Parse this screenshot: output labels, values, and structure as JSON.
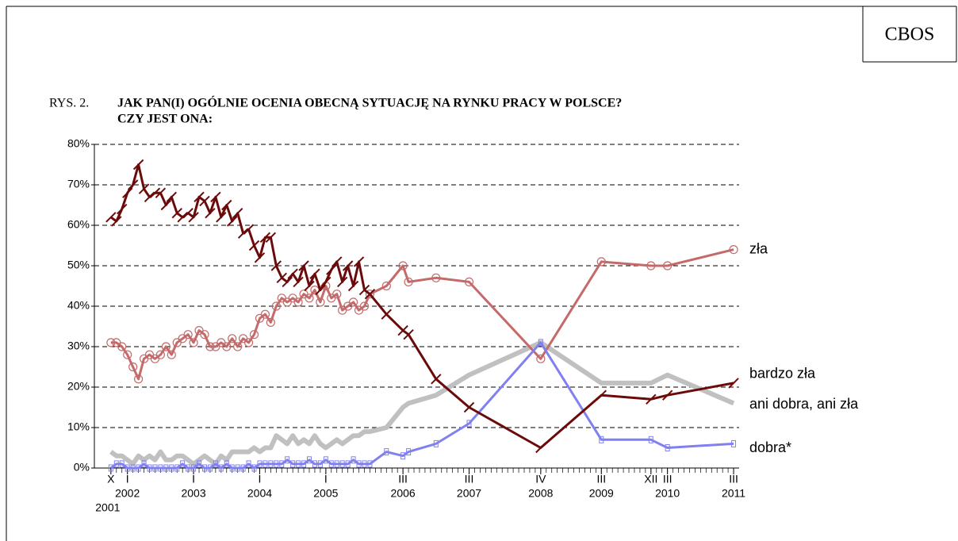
{
  "header": {
    "logo": "CBOS",
    "figure_label": "RYS. 2."
  },
  "chart_data": {
    "type": "line",
    "title": "JAK PAN(I) OGÓLNIE OCENIA OBECNĄ SYTUACJĘ NA RYNKU PRACY W POLSCE?",
    "subtitle": "CZY JEST ONA:",
    "x": [
      "2001-10",
      "2001-11",
      "2001-12",
      "2002-01",
      "2002-02",
      "2002-03",
      "2002-04",
      "2002-05",
      "2002-06",
      "2002-07",
      "2002-08",
      "2002-09",
      "2002-10",
      "2002-11",
      "2002-12",
      "2003-01",
      "2003-02",
      "2003-03",
      "2003-04",
      "2003-05",
      "2003-06",
      "2003-07",
      "2003-08",
      "2003-09",
      "2003-10",
      "2003-11",
      "2003-12",
      "2004-01",
      "2004-02",
      "2004-03",
      "2004-04",
      "2004-05",
      "2004-06",
      "2004-07",
      "2004-08",
      "2004-09",
      "2004-10",
      "2004-11",
      "2004-12",
      "2005-01",
      "2005-02",
      "2005-03",
      "2005-04",
      "2005-05",
      "2005-06",
      "2005-07",
      "2005-08",
      "2005-09",
      "2005-12",
      "2006-03",
      "2006-04",
      "2006-09",
      "2007-03",
      "2008-04",
      "2009-03",
      "2009-12",
      "2010-03",
      "2011-03"
    ],
    "series": [
      {
        "name": "zła",
        "color": "#c46a6a",
        "values": [
          31,
          31,
          30,
          28,
          25,
          22,
          27,
          28,
          27,
          28,
          30,
          28,
          31,
          32,
          33,
          31,
          34,
          33,
          30,
          30,
          31,
          30,
          32,
          30,
          32,
          31,
          33,
          37,
          38,
          36,
          40,
          42,
          41,
          42,
          41,
          43,
          42,
          44,
          41,
          45,
          42,
          43,
          39,
          40,
          41,
          39,
          40,
          43,
          45,
          50,
          46,
          47,
          46,
          27,
          51,
          50,
          50,
          54
        ]
      },
      {
        "name": "bardzo zła",
        "color": "#6b0a0a",
        "values": [
          62,
          61,
          64,
          68,
          70,
          75,
          69,
          67,
          68,
          68,
          65,
          67,
          63,
          62,
          63,
          62,
          67,
          66,
          63,
          67,
          62,
          65,
          61,
          63,
          58,
          59,
          55,
          52,
          57,
          57,
          50,
          47,
          46,
          48,
          46,
          50,
          45,
          48,
          44,
          46,
          49,
          51,
          46,
          50,
          45,
          51,
          44,
          43,
          38,
          34,
          33,
          22,
          15,
          5,
          18,
          17,
          18,
          21
        ]
      },
      {
        "name": "ani dobra, ani zła",
        "color": "#c0c0c0",
        "values": [
          4,
          3,
          3,
          2,
          1,
          3,
          2,
          3,
          2,
          4,
          2,
          2,
          3,
          3,
          2,
          1,
          2,
          3,
          2,
          1,
          3,
          2,
          4,
          4,
          4,
          4,
          5,
          4,
          5,
          5,
          8,
          7,
          6,
          8,
          6,
          7,
          6,
          8,
          6,
          5,
          6,
          7,
          6,
          7,
          8,
          8,
          9,
          9,
          10,
          15,
          16,
          18,
          23,
          31,
          21,
          21,
          23,
          16
        ]
      },
      {
        "name": "dobra*",
        "color": "#8080f0",
        "values": [
          0,
          1,
          1,
          0,
          0,
          0,
          1,
          0,
          0,
          0,
          0,
          0,
          0,
          1,
          0,
          0,
          1,
          0,
          0,
          1,
          0,
          1,
          0,
          0,
          0,
          1,
          0,
          1,
          1,
          1,
          1,
          1,
          2,
          1,
          1,
          1,
          2,
          1,
          1,
          2,
          1,
          1,
          1,
          1,
          2,
          1,
          1,
          1,
          4,
          3,
          4,
          6,
          11,
          31,
          7,
          7,
          5,
          6
        ]
      }
    ],
    "xlim": [
      "2001-07",
      "2011-04"
    ],
    "xticks": [
      {
        "value": "2001-10",
        "label": "X",
        "sublabel": "2001"
      },
      {
        "value": "2002-01",
        "label": "I",
        "sublabel": "2002"
      },
      {
        "value": "2003-01",
        "label": "I",
        "sublabel": "2003"
      },
      {
        "value": "2004-01",
        "label": "I",
        "sublabel": "2004"
      },
      {
        "value": "2005-01",
        "label": "I",
        "sublabel": "2005"
      },
      {
        "value": "2006-03",
        "label": "III",
        "sublabel": "2006"
      },
      {
        "value": "2007-03",
        "label": "III",
        "sublabel": "2007"
      },
      {
        "value": "2008-04",
        "label": "IV",
        "sublabel": "2008"
      },
      {
        "value": "2009-03",
        "label": "III",
        "sublabel": "2009"
      },
      {
        "value": "2009-12",
        "label": "XII"
      },
      {
        "value": "2010-03",
        "label": "III",
        "sublabel": "2010"
      },
      {
        "value": "2011-03",
        "label": "III",
        "sublabel": "2011"
      }
    ],
    "ylim": [
      0,
      80
    ],
    "yticks": [
      {
        "value": 0,
        "label": "0%"
      },
      {
        "value": 10,
        "label": "10%"
      },
      {
        "value": 20,
        "label": "20%"
      },
      {
        "value": 30,
        "label": "30%"
      },
      {
        "value": 40,
        "label": "40%"
      },
      {
        "value": 50,
        "label": "50%"
      },
      {
        "value": 60,
        "label": "60%"
      },
      {
        "value": 70,
        "label": "70%"
      },
      {
        "value": 80,
        "label": "80%"
      }
    ],
    "grid": true
  }
}
